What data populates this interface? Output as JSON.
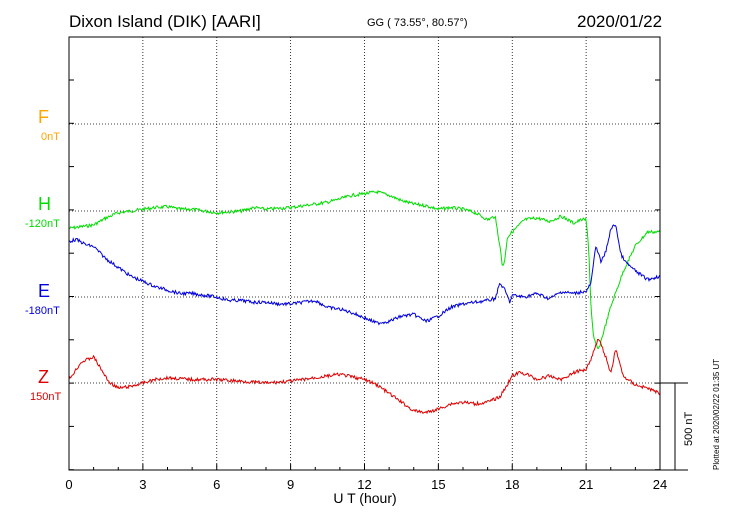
{
  "header": {
    "title": "Dixon Island (DIK)  [AARI]",
    "coords": "GG ( 73.55°,  80.57°)",
    "date": "2020/01/22"
  },
  "side_note": "Plotted at 2020/02/22 01:35 UT",
  "scale_bar": {
    "label": "500 nT",
    "value_nT": 500
  },
  "components": [
    {
      "name": "F",
      "baseline": "0nT",
      "color": "#ffa500"
    },
    {
      "name": "H",
      "baseline": "-120nT",
      "color": "#00dd00"
    },
    {
      "name": "E",
      "baseline": "-180nT",
      "color": "#0000dd"
    },
    {
      "name": "Z",
      "baseline": "150nT",
      "color": "#dd0000"
    }
  ],
  "chart_data": {
    "type": "line",
    "title": "Dixon Island (DIK)  [AARI]",
    "xlabel": "U T (hour)",
    "xlim": [
      0,
      24
    ],
    "x_ticks": [
      "0",
      "3",
      "6",
      "9",
      "12",
      "15",
      "18",
      "21",
      "24"
    ],
    "grid": true,
    "units": "nT (offset from component baseline)",
    "series": [
      {
        "name": "H",
        "color": "#00dd00",
        "x": [
          0,
          0.5,
          1,
          1.5,
          2,
          2.5,
          3,
          3.5,
          4,
          4.5,
          5,
          5.5,
          6,
          6.5,
          7,
          7.5,
          8,
          8.5,
          9,
          9.5,
          10,
          10.5,
          11,
          11.5,
          12,
          12.5,
          13,
          13.5,
          14,
          14.5,
          15,
          15.5,
          16,
          16.5,
          17,
          17.3,
          17.5,
          17.6,
          17.7,
          17.8,
          18,
          18.5,
          19,
          19.5,
          20,
          20.5,
          20.8,
          21,
          21.1,
          21.2,
          21.3,
          21.5,
          21.7,
          22,
          22.5,
          23,
          23.5,
          24
        ],
        "values": [
          -100,
          -90,
          -80,
          -40,
          -10,
          0,
          10,
          20,
          25,
          10,
          10,
          0,
          -10,
          -5,
          0,
          20,
          10,
          15,
          20,
          30,
          40,
          50,
          70,
          90,
          100,
          110,
          90,
          60,
          40,
          30,
          10,
          20,
          10,
          -10,
          -50,
          -30,
          -200,
          -320,
          -280,
          -150,
          -120,
          -50,
          -40,
          -60,
          -30,
          -70,
          -50,
          -50,
          -200,
          -560,
          -730,
          -800,
          -700,
          -550,
          -350,
          -200,
          -120,
          -120
        ]
      },
      {
        "name": "E",
        "color": "#0000dd",
        "x": [
          0,
          0.3,
          0.7,
          1,
          1.5,
          2,
          2.5,
          3,
          3.5,
          4,
          4.5,
          5,
          5.5,
          6,
          6.5,
          7,
          7.5,
          8,
          8.5,
          9,
          9.5,
          10,
          10.5,
          11,
          11.5,
          12,
          12.5,
          13,
          13.5,
          14,
          14.5,
          15,
          15.5,
          16,
          16.5,
          17,
          17.3,
          17.5,
          17.7,
          17.9,
          18,
          18.5,
          19,
          19.5,
          20,
          20.5,
          20.8,
          21,
          21.2,
          21.4,
          21.6,
          21.8,
          22,
          22.2,
          22.4,
          22.6,
          23,
          23.5,
          24
        ],
        "values": [
          320,
          330,
          300,
          290,
          220,
          170,
          120,
          90,
          60,
          40,
          20,
          20,
          10,
          0,
          -20,
          -20,
          -30,
          -30,
          -40,
          -40,
          -30,
          -20,
          -60,
          -70,
          -90,
          -120,
          -150,
          -140,
          -110,
          -100,
          -140,
          -110,
          -60,
          -40,
          -30,
          -20,
          -10,
          80,
          40,
          -30,
          10,
          0,
          20,
          -10,
          30,
          20,
          30,
          30,
          80,
          300,
          200,
          260,
          390,
          420,
          250,
          200,
          150,
          100,
          120
        ]
      },
      {
        "name": "Z",
        "color": "#dd0000",
        "x": [
          0,
          0.5,
          1,
          1.3,
          1.6,
          2,
          2.5,
          3,
          3.5,
          4,
          5,
          6,
          7,
          8,
          9,
          10,
          11,
          12,
          12.5,
          13,
          13.5,
          14,
          14.5,
          15,
          15.5,
          16,
          16.5,
          17,
          17.5,
          18,
          18.3,
          18.6,
          19,
          19.5,
          20,
          20.5,
          21,
          21.2,
          21.5,
          21.8,
          22,
          22.2,
          22.5,
          23,
          23.5,
          24
        ],
        "values": [
          20,
          120,
          150,
          80,
          10,
          -30,
          -20,
          0,
          20,
          30,
          20,
          20,
          10,
          0,
          10,
          30,
          50,
          20,
          -10,
          -60,
          -110,
          -160,
          -170,
          -150,
          -120,
          -110,
          -120,
          -110,
          -80,
          40,
          60,
          50,
          20,
          40,
          20,
          60,
          80,
          140,
          260,
          150,
          50,
          200,
          40,
          -10,
          -30,
          -60
        ]
      }
    ]
  }
}
